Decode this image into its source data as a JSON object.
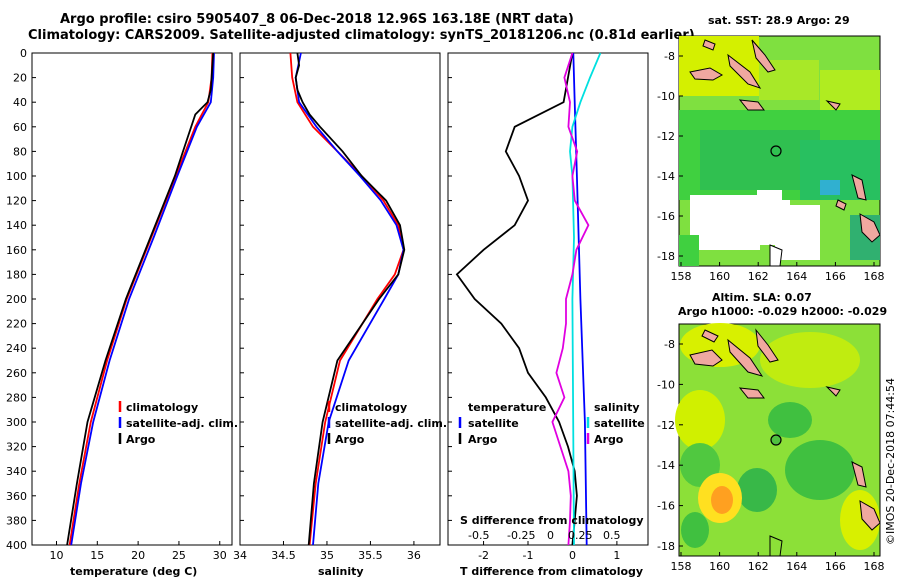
{
  "title": {
    "line1": "Argo profile: csiro 5905407_8 06-Dec-2018 12.96S 163.18E (NRT data)",
    "line2": "Climatology: CARS2009. Satellite-adjusted climatology: synTS_20181206.nc (0.81d earlier)"
  },
  "colors": {
    "climatology": "#ff0000",
    "satellite": "#0000ff",
    "argo": "#000000",
    "satellite_s": "#00e0e0",
    "argo_s": "#e000e0"
  },
  "chart_data": [
    {
      "id": "temperature",
      "type": "line",
      "xlabel": "temperature (deg C)",
      "ylabel": "",
      "xlim": [
        7,
        31.5
      ],
      "ylim": [
        400,
        0
      ],
      "xticks": [
        10,
        15,
        20,
        25,
        30
      ],
      "yticks": [
        0,
        20,
        40,
        60,
        80,
        100,
        120,
        140,
        160,
        180,
        200,
        220,
        240,
        260,
        280,
        300,
        320,
        340,
        360,
        380,
        400
      ],
      "legend": [
        "climatology",
        "satellite-adj. clim.",
        "Argo"
      ],
      "series": [
        {
          "name": "climatology",
          "color": "#ff0000",
          "depth": [
            0,
            20,
            40,
            60,
            100,
            150,
            200,
            250,
            300,
            350,
            400
          ],
          "values": [
            29.1,
            29.0,
            28.6,
            27.0,
            24.6,
            21.6,
            18.6,
            16.2,
            14.2,
            12.8,
            11.6
          ]
        },
        {
          "name": "satellite-adj. clim.",
          "color": "#0000ff",
          "depth": [
            0,
            20,
            40,
            60,
            100,
            150,
            200,
            250,
            300,
            350,
            400
          ],
          "values": [
            29.3,
            29.2,
            28.9,
            27.2,
            24.8,
            21.9,
            18.9,
            16.5,
            14.5,
            13.0,
            11.8
          ]
        },
        {
          "name": "Argo",
          "color": "#000000",
          "depth": [
            0,
            20,
            30,
            40,
            50,
            80,
            100,
            150,
            200,
            250,
            300,
            350,
            400
          ],
          "values": [
            29.2,
            29.0,
            28.9,
            28.5,
            27.0,
            25.5,
            24.5,
            21.5,
            18.5,
            16.0,
            13.8,
            12.5,
            11.3
          ]
        }
      ]
    },
    {
      "id": "salinity",
      "type": "line",
      "xlabel": "salinity",
      "ylabel": "",
      "xlim": [
        34,
        36.3
      ],
      "ylim": [
        400,
        0
      ],
      "xticks": [
        34,
        34.5,
        35,
        35.5,
        36
      ],
      "xticklabels": [
        "34",
        "34.5",
        "35",
        "35.5",
        "36"
      ],
      "legend": [
        "climatology",
        "satellite-adj. clim.",
        "Argo"
      ],
      "series": [
        {
          "name": "climatology",
          "color": "#ff0000",
          "depth": [
            0,
            20,
            40,
            60,
            80,
            100,
            120,
            140,
            160,
            180,
            200,
            250,
            300,
            350,
            400
          ],
          "values": [
            34.58,
            34.6,
            34.66,
            34.84,
            35.12,
            35.4,
            35.65,
            35.82,
            35.88,
            35.78,
            35.58,
            35.15,
            34.98,
            34.87,
            34.8
          ]
        },
        {
          "name": "satellite-adj. clim.",
          "color": "#0000ff",
          "depth": [
            0,
            20,
            40,
            60,
            80,
            100,
            120,
            140,
            160,
            180,
            200,
            250,
            300,
            350,
            400
          ],
          "values": [
            34.7,
            34.64,
            34.68,
            34.88,
            35.12,
            35.38,
            35.62,
            35.8,
            35.88,
            35.82,
            35.66,
            35.25,
            35.02,
            34.9,
            34.84
          ]
        },
        {
          "name": "Argo",
          "color": "#000000",
          "depth": [
            0,
            10,
            20,
            30,
            40,
            50,
            60,
            80,
            100,
            120,
            140,
            160,
            180,
            200,
            250,
            300,
            350,
            400
          ],
          "values": [
            34.66,
            34.68,
            34.64,
            34.66,
            34.72,
            34.8,
            34.92,
            35.18,
            35.4,
            35.68,
            35.84,
            35.89,
            35.82,
            35.6,
            35.12,
            34.95,
            34.85,
            34.79
          ]
        }
      ]
    },
    {
      "id": "difference",
      "type": "line",
      "xlabel": "T difference from climatology",
      "top_axis_label": "S difference from climatology",
      "xlim": [
        -2.8,
        1.7
      ],
      "ylim": [
        400,
        0
      ],
      "xticks": [
        -2,
        -1,
        0,
        1
      ],
      "xticklabels": [
        "-2",
        "-1",
        "0",
        "1"
      ],
      "sticks": [
        "-0.5",
        "-0.25",
        "0",
        "0.25",
        "0.5"
      ],
      "legend_temperature_title": "temperature",
      "legend_salinity_title": "salinity",
      "legend": [
        "satellite",
        "Argo"
      ],
      "series": [
        {
          "name": "T satellite",
          "color": "#0000ff",
          "depth": [
            0,
            40,
            100,
            200,
            300,
            400
          ],
          "values": [
            0.02,
            0.05,
            0.1,
            0.18,
            0.28,
            0.32
          ]
        },
        {
          "name": "T Argo",
          "color": "#000000",
          "depth": [
            0,
            20,
            40,
            60,
            80,
            100,
            120,
            140,
            160,
            180,
            200,
            220,
            240,
            260,
            280,
            300,
            320,
            340,
            360,
            380,
            400
          ],
          "values": [
            0.0,
            -0.1,
            -0.2,
            -1.3,
            -1.5,
            -1.2,
            -1.0,
            -1.3,
            -2.0,
            -2.6,
            -2.2,
            -1.6,
            -1.2,
            -1.0,
            -0.6,
            -0.3,
            -0.1,
            0.05,
            0.1,
            0.05,
            0.0
          ]
        },
        {
          "name": "S satellite",
          "color": "#00e0e0",
          "depth": [
            0,
            20,
            40,
            60,
            80,
            100,
            150,
            200,
            300,
            400
          ],
          "values": [
            0.35,
            0.22,
            0.1,
            0.0,
            -0.03,
            0.0,
            0.02,
            0.0,
            0.01,
            0.02
          ]
        },
        {
          "name": "S Argo",
          "color": "#e000e0",
          "depth": [
            0,
            20,
            40,
            60,
            80,
            100,
            120,
            140,
            160,
            180,
            200,
            220,
            240,
            260,
            280,
            300,
            320,
            340,
            360,
            380,
            400
          ],
          "values": [
            0.0,
            -0.1,
            -0.03,
            -0.05,
            0.06,
            0.0,
            0.03,
            0.2,
            0.05,
            0.0,
            -0.08,
            -0.08,
            -0.12,
            -0.2,
            -0.1,
            -0.25,
            -0.15,
            -0.05,
            -0.02,
            -0.03,
            -0.05
          ]
        }
      ]
    },
    {
      "id": "sst-map",
      "type": "heatmap",
      "title": "sat. SST: 28.9 Argo: 29",
      "xticks": [
        "158",
        "160",
        "162",
        "164",
        "166",
        "168"
      ],
      "yticks": [
        "-8",
        "-10",
        "-12",
        "-14",
        "-16",
        "-18"
      ],
      "argo_position": {
        "lon": 163.18,
        "lat": -12.96
      }
    },
    {
      "id": "sla-map",
      "type": "heatmap",
      "title_line1": "Altim. SLA: 0.07",
      "title_line2": "Argo h1000: -0.029 h2000: -0.029",
      "xticks": [
        "158",
        "160",
        "162",
        "164",
        "166",
        "168"
      ],
      "yticks": [
        "-8",
        "-10",
        "-12",
        "-14",
        "-16",
        "-18"
      ],
      "argo_position": {
        "lon": 163.18,
        "lat": -12.96
      }
    }
  ],
  "footer": "©IMOS 20-Dec-2018 07:44:54"
}
